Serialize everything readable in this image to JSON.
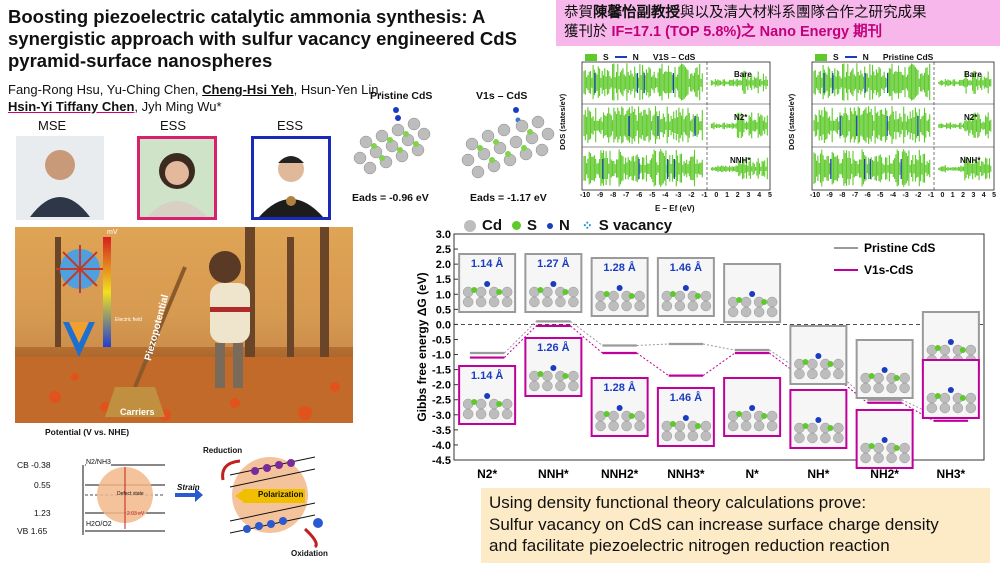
{
  "title": "Boosting piezoelectric catalytic ammonia synthesis: A synergistic approach with sulfur vacancy engineered CdS pyramid-surface nanospheres",
  "authors": {
    "part1": "Fang-Rong Hsu, Yu-Ching Chen, ",
    "a1": "Cheng-Hsi Yeh",
    "part2": ", Hsun-Yen Lin, ",
    "a2": "Hsin-Yi Tiffany Chen",
    "part3": ", Jyh Ming Wu*"
  },
  "affiliations": [
    "MSE",
    "ESS",
    "ESS"
  ],
  "banner": {
    "line1a": "恭賀",
    "line1b": "陳馨怡副教授",
    "line1c": "與以及清大材料系團隊合作之研究成果",
    "line2a": "獲刊於 ",
    "line2b": "IF=17.1 (TOP 5.8%)之 Nano Energy 期刊"
  },
  "structures": {
    "pristine_label": "Pristine CdS",
    "vacancy_label": "V1s – CdS",
    "pristine_eads": "Eads = -0.96 eV",
    "vacancy_eads": "Eads = -1.17 eV"
  },
  "dos": {
    "left_title": "V1S – CdS",
    "right_title": "Pristine CdS",
    "legend_s": "S",
    "legend_n": "N",
    "ylabel": "DOS (states/eV)",
    "xlabel": "E – Ef (eV)",
    "xticks": [
      "-10",
      "-9",
      "-8",
      "-7",
      "-6",
      "-5",
      "-4",
      "-3",
      "-2",
      "-1",
      "0",
      "1",
      "2",
      "3",
      "4",
      "5"
    ],
    "rows": [
      "Bare",
      "N2*",
      "NNH*"
    ]
  },
  "legend_atoms": {
    "cd": "Cd",
    "s": "S",
    "n": "N",
    "vac": "S vacancy"
  },
  "illustration": {
    "piezopotential": "Piezopotential",
    "carriers": "Carriers",
    "mv": "mV",
    "electric_field": "Electric field"
  },
  "band": {
    "title": "Potential (V vs. NHE)",
    "cb": "CB -0.38",
    "v055": "0.55",
    "v123": "1.23",
    "vb": "VB 1.65",
    "n2": "N2/NH3",
    "h2o": "H2O/O2",
    "defect": "Defect state",
    "gap": "2.03 eV",
    "strain": "Strain",
    "reduction": "Reduction",
    "oxidation": "Oxidation",
    "polarization": "Polarization"
  },
  "chart_data": {
    "type": "line",
    "ylabel": "Gibbs free energy ΔG (eV)",
    "categories": [
      "N2*",
      "NNH*",
      "NNH2*",
      "NNH3*",
      "N*",
      "NH*",
      "NH2*",
      "NH3*"
    ],
    "ylim": [
      -4.5,
      3.0
    ],
    "yticks": [
      3.0,
      2.5,
      2.0,
      1.5,
      1.0,
      0.5,
      0.0,
      -0.5,
      -1.0,
      -1.5,
      -2.0,
      -2.5,
      -3.0,
      -3.5,
      -4.0,
      -4.5
    ],
    "series": [
      {
        "name": "Pristine CdS",
        "color": "#9a9a9a",
        "values": [
          -0.95,
          0.1,
          -0.7,
          -0.65,
          -0.85,
          -1.55,
          -2.5,
          -3.0
        ]
      },
      {
        "name": "V1s-CdS",
        "color": "#c0009a",
        "values": [
          -1.1,
          -0.05,
          -0.95,
          -1.7,
          -0.95,
          -1.75,
          -2.6,
          -3.2
        ]
      }
    ],
    "pristine_labels": [
      "1.14 Å",
      "1.27 Å",
      "1.28 Å",
      "1.46 Å"
    ],
    "vacancy_labels": [
      "1.14 Å",
      "1.26 Å",
      "1.28 Å",
      "1.46 Å"
    ]
  },
  "note": {
    "line1": "Using density functional theory calculations prove:",
    "line2": "Sulfur vacancy on CdS can increase surface charge density",
    "line3": "and facilitate piezoelectric nitrogen reduction reaction"
  },
  "colors": {
    "accent": "#c0009a",
    "gray": "#9a9a9a",
    "green": "#5ec92a",
    "blue": "#1a3cc0"
  }
}
